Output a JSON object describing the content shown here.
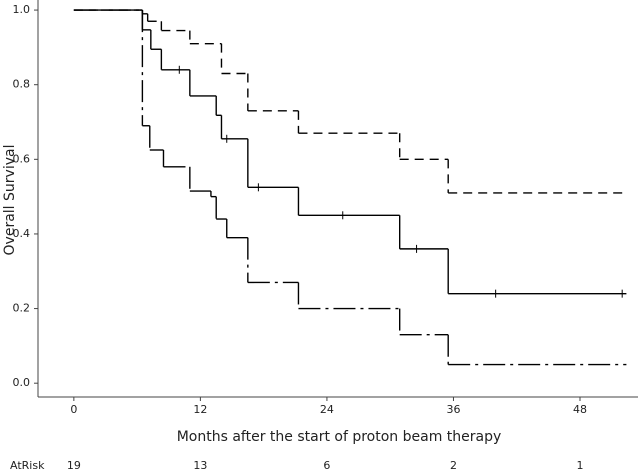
{
  "chart_data": {
    "type": "step",
    "xlabel": "Months after the start of proton beam therapy",
    "ylabel": "Overall Survival",
    "xlim": [
      -3.4,
      53.5
    ],
    "ylim": [
      -0.037,
      1.027
    ],
    "xticks": [
      0,
      12,
      24,
      36,
      48
    ],
    "yticks": [
      {
        "value": 0,
        "label": "0.0"
      },
      0.2,
      0.4,
      0.6,
      0.8,
      {
        "value": 1,
        "label": "1.0"
      }
    ],
    "x_end": 52.4,
    "series": [
      {
        "color": "#000000",
        "dash": "none",
        "x": [
          0,
          6.5,
          7.3,
          8.3,
          11,
          13.5,
          14,
          16.5,
          21.3,
          30.9,
          35.5
        ],
        "values": [
          1,
          0.947,
          0.895,
          0.84,
          0.77,
          0.718,
          0.655,
          0.525,
          0.45,
          0.36,
          0.24
        ],
        "censored_x": [
          10,
          14.5,
          17.5,
          25.5,
          32.5,
          40,
          52
        ],
        "censored_values": [
          0.84,
          0.655,
          0.525,
          0.45,
          0.36,
          0.24,
          0.24
        ]
      },
      {
        "color": "#000000",
        "dash": "9 6",
        "x": [
          0,
          6.5,
          7,
          8.3,
          11,
          14,
          16.5,
          21.3,
          30.9,
          35.5
        ],
        "values": [
          1,
          0.99,
          0.97,
          0.945,
          0.91,
          0.83,
          0.73,
          0.67,
          0.6,
          0.51
        ]
      },
      {
        "color": "#000000",
        "dash": "22 5 3 5",
        "x": [
          0,
          6.5,
          7.2,
          8.5,
          11,
          13,
          13.5,
          14.5,
          16.5,
          21.3,
          30.9,
          35.5
        ],
        "values": [
          1,
          0.69,
          0.625,
          0.58,
          0.515,
          0.5,
          0.44,
          0.39,
          0.27,
          0.2,
          0.13,
          0.05
        ]
      }
    ],
    "at_risk": {
      "label": "AtRisk",
      "values": [
        19,
        13,
        6,
        2,
        1
      ]
    }
  }
}
